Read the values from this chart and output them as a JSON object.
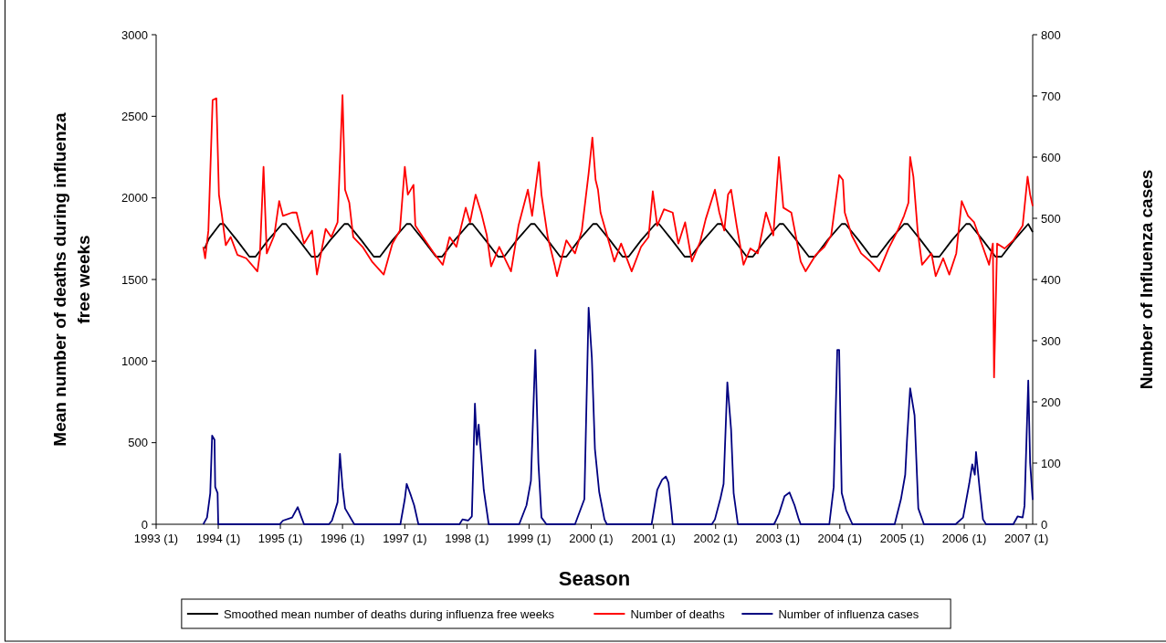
{
  "chart_data": {
    "type": "line",
    "xlabel": "Season",
    "ylabel": "Mean number of deaths during influenza free weeks",
    "y2label": "Number of Influenza cases",
    "xlim": [
      "1993-01-01",
      "2007-02-07"
    ],
    "xticks": [
      {
        "value": "1993-01-01",
        "label": "1993 (1)"
      },
      {
        "value": "1994-01-01",
        "label": "1994 (1)"
      },
      {
        "value": "1995-01-01",
        "label": "1995 (1)"
      },
      {
        "value": "1996-01-01",
        "label": "1996 (1)"
      },
      {
        "value": "1997-01-01",
        "label": "1997 (1)"
      },
      {
        "value": "1998-01-01",
        "label": "1998 (1)"
      },
      {
        "value": "1999-01-01",
        "label": "1999 (1)"
      },
      {
        "value": "2000-01-01",
        "label": "2000 (1)"
      },
      {
        "value": "2001-01-01",
        "label": "2001 (1)"
      },
      {
        "value": "2002-01-01",
        "label": "2002 (1)"
      },
      {
        "value": "2003-01-01",
        "label": "2003 (1)"
      },
      {
        "value": "2004-01-01",
        "label": "2004 (1)"
      },
      {
        "value": "2005-01-01",
        "label": "2005 (1)"
      },
      {
        "value": "2006-01-01",
        "label": "2006 (1)"
      },
      {
        "value": "2007-01-01",
        "label": "2007 (1)"
      }
    ],
    "ylim": [
      0,
      3000
    ],
    "yticks": [
      0,
      500,
      1000,
      1500,
      2000,
      2500,
      3000
    ],
    "y2lim": [
      0,
      800
    ],
    "y2ticks": [
      0,
      100,
      200,
      300,
      400,
      500,
      600,
      700,
      800
    ],
    "grid": false,
    "legend": "bottom",
    "line_style": "solid",
    "marker": "none",
    "series": [
      {
        "name": "Smoothed mean number of deaths during influenza free weeks",
        "color": "#000000",
        "x": [
          "1993-10-13",
          "1993-11-07",
          "1994-01-12",
          "1994-02-03",
          "1994-04-21",
          "1994-07-03",
          "1994-08-08",
          "1994-10-20",
          "1995-01-12",
          "1995-02-03",
          "1995-04-21",
          "1995-07-03",
          "1995-08-08",
          "1995-10-20",
          "1996-01-12",
          "1996-02-03",
          "1996-04-21",
          "1996-07-03",
          "1996-08-08",
          "1996-10-20",
          "1997-01-12",
          "1997-02-03",
          "1997-04-21",
          "1997-07-03",
          "1997-08-08",
          "1997-10-20",
          "1998-01-12",
          "1998-02-03",
          "1998-04-21",
          "1998-07-03",
          "1998-08-08",
          "1998-10-20",
          "1999-01-12",
          "1999-02-03",
          "1999-04-21",
          "1999-07-03",
          "1999-08-08",
          "1999-10-20",
          "2000-01-12",
          "2000-02-03",
          "2000-04-21",
          "2000-07-03",
          "2000-08-08",
          "2000-10-20",
          "2001-01-12",
          "2001-02-03",
          "2001-04-21",
          "2001-07-03",
          "2001-08-08",
          "2001-10-20",
          "2002-01-12",
          "2002-02-03",
          "2002-04-21",
          "2002-07-03",
          "2002-08-08",
          "2002-10-20",
          "2003-01-12",
          "2003-02-03",
          "2003-04-21",
          "2003-07-03",
          "2003-08-08",
          "2003-10-20",
          "2004-01-12",
          "2004-02-03",
          "2004-04-21",
          "2004-07-03",
          "2004-08-08",
          "2004-10-20",
          "2005-01-12",
          "2005-02-03",
          "2005-04-21",
          "2005-07-03",
          "2005-08-08",
          "2005-10-20",
          "2006-01-12",
          "2006-02-03",
          "2006-04-21",
          "2006-07-03",
          "2006-08-08",
          "2006-10-20",
          "2007-01-12",
          "2007-02-07"
        ],
        "values": [
          1690,
          1750,
          1840,
          1840,
          1740,
          1640,
          1640,
          1740,
          1840,
          1840,
          1740,
          1640,
          1640,
          1740,
          1840,
          1840,
          1740,
          1640,
          1640,
          1740,
          1840,
          1840,
          1740,
          1640,
          1640,
          1740,
          1840,
          1840,
          1740,
          1640,
          1640,
          1740,
          1840,
          1840,
          1740,
          1640,
          1640,
          1740,
          1840,
          1840,
          1740,
          1640,
          1640,
          1740,
          1840,
          1840,
          1740,
          1640,
          1640,
          1740,
          1840,
          1840,
          1740,
          1640,
          1640,
          1740,
          1840,
          1840,
          1740,
          1640,
          1640,
          1740,
          1840,
          1840,
          1740,
          1640,
          1640,
          1740,
          1840,
          1840,
          1740,
          1640,
          1640,
          1740,
          1840,
          1840,
          1740,
          1640,
          1640,
          1740,
          1840,
          1790
        ]
      },
      {
        "name": "Number of deaths",
        "color": "#ff0000",
        "x": [
          "1993-10-05",
          "1993-10-16",
          "1993-11-04",
          "1993-11-29",
          "1993-12-21",
          "1994-01-05",
          "1994-01-23",
          "1994-02-14",
          "1994-03-15",
          "1994-04-24",
          "1994-06-14",
          "1994-08-19",
          "1994-09-03",
          "1994-09-24",
          "1994-10-13",
          "1994-11-26",
          "1994-12-25",
          "1995-01-16",
          "1995-03-11",
          "1995-04-06",
          "1995-05-20",
          "1995-07-06",
          "1995-08-04",
          "1995-09-24",
          "1995-10-27",
          "1995-12-03",
          "1996-01-01",
          "1996-01-16",
          "1996-02-10",
          "1996-03-04",
          "1996-04-28",
          "1996-06-22",
          "1996-08-30",
          "1996-10-20",
          "1996-12-03",
          "1997-01-01",
          "1997-01-19",
          "1997-02-21",
          "1997-03-04",
          "1997-04-17",
          "1997-06-22",
          "1997-08-12",
          "1997-09-21",
          "1997-10-31",
          "1997-12-25",
          "1998-01-19",
          "1998-02-21",
          "1998-03-26",
          "1998-04-28",
          "1998-05-23",
          "1998-07-10",
          "1998-09-17",
          "1998-10-31",
          "1998-12-25",
          "1999-01-19",
          "1999-02-28",
          "1999-03-15",
          "1999-04-21",
          "1999-05-31",
          "1999-06-14",
          "1999-08-08",
          "1999-09-28",
          "1999-11-07",
          "1999-12-17",
          "2000-01-08",
          "2000-01-27",
          "2000-02-10",
          "2000-02-25",
          "2000-04-17",
          "2000-05-16",
          "2000-06-25",
          "2000-08-26",
          "2000-10-20",
          "2000-12-03",
          "2000-12-28",
          "2001-01-23",
          "2001-03-04",
          "2001-04-24",
          "2001-05-27",
          "2001-07-06",
          "2001-08-15",
          "2001-10-02",
          "2001-11-04",
          "2001-12-28",
          "2002-01-23",
          "2002-02-21",
          "2002-03-15",
          "2002-04-02",
          "2002-05-05",
          "2002-06-14",
          "2002-07-24",
          "2002-09-06",
          "2002-10-24",
          "2002-12-06",
          "2003-01-08",
          "2003-02-03",
          "2003-03-22",
          "2003-05-16",
          "2003-06-14",
          "2003-08-12",
          "2003-10-02",
          "2003-11-11",
          "2003-12-28",
          "2004-01-19",
          "2004-01-30",
          "2004-03-11",
          "2004-05-05",
          "2004-06-29",
          "2004-08-19",
          "2004-10-13",
          "2004-12-06",
          "2005-01-12",
          "2005-02-07",
          "2005-02-17",
          "2005-03-08",
          "2005-04-02",
          "2005-04-28",
          "2005-06-22",
          "2005-07-17",
          "2005-08-30",
          "2005-10-05",
          "2005-11-15",
          "2005-12-17",
          "2006-01-23",
          "2006-02-28",
          "2006-04-13",
          "2006-05-27",
          "2006-06-18",
          "2006-06-25",
          "2006-07-13",
          "2006-08-26",
          "2006-10-16",
          "2006-12-10",
          "2007-01-08",
          "2007-01-23",
          "2007-02-07"
        ],
        "values": [
          1700,
          1630,
          1800,
          2600,
          2610,
          2020,
          1890,
          1710,
          1760,
          1650,
          1630,
          1550,
          1660,
          2190,
          1660,
          1770,
          1980,
          1890,
          1910,
          1910,
          1720,
          1800,
          1530,
          1810,
          1760,
          1850,
          2630,
          2050,
          1970,
          1760,
          1700,
          1610,
          1530,
          1720,
          1800,
          2190,
          2020,
          2080,
          1830,
          1760,
          1660,
          1590,
          1760,
          1700,
          1940,
          1850,
          2020,
          1910,
          1770,
          1580,
          1700,
          1550,
          1830,
          2050,
          1890,
          2220,
          2020,
          1760,
          1590,
          1520,
          1740,
          1660,
          1800,
          2150,
          2370,
          2110,
          2050,
          1910,
          1720,
          1610,
          1720,
          1550,
          1700,
          1760,
          2040,
          1830,
          1930,
          1910,
          1720,
          1850,
          1610,
          1730,
          1870,
          2050,
          1910,
          1800,
          2020,
          2050,
          1830,
          1590,
          1690,
          1660,
          1910,
          1770,
          2250,
          1940,
          1910,
          1610,
          1550,
          1650,
          1700,
          1770,
          2140,
          2110,
          1910,
          1770,
          1660,
          1610,
          1550,
          1690,
          1800,
          1890,
          1970,
          2250,
          2130,
          1800,
          1590,
          1660,
          1520,
          1630,
          1530,
          1660,
          1980,
          1890,
          1850,
          1720,
          1590,
          1720,
          900,
          1720,
          1690,
          1740,
          1830,
          2130,
          2020,
          1950
        ]
      },
      {
        "name": "Number of influenza cases",
        "color": "#000080",
        "axis": "y2",
        "x": [
          "1993-10-05",
          "1993-10-27",
          "1993-11-15",
          "1993-11-26",
          "1993-12-10",
          "1993-12-14",
          "1993-12-28",
          "1994-01-01",
          "1994-12-28",
          "1995-01-16",
          "1995-03-11",
          "1995-04-13",
          "1995-05-05",
          "1995-05-20",
          "1995-10-13",
          "1995-10-31",
          "1995-12-03",
          "1995-12-17",
          "1996-01-01",
          "1996-01-16",
          "1996-03-04",
          "1996-03-11",
          "1996-12-06",
          "1997-01-01",
          "1997-01-12",
          "1997-02-07",
          "1997-02-25",
          "1997-03-22",
          "1997-11-18",
          "1997-12-06",
          "1998-01-08",
          "1998-01-30",
          "1998-02-17",
          "1998-02-28",
          "1998-03-11",
          "1998-03-22",
          "1998-04-10",
          "1998-05-09",
          "1998-11-04",
          "1998-12-17",
          "1999-01-12",
          "1999-02-07",
          "1999-02-25",
          "1999-03-15",
          "1999-04-13",
          "1999-09-28",
          "1999-11-22",
          "1999-12-17",
          "2000-01-05",
          "2000-01-23",
          "2000-02-17",
          "2000-03-19",
          "2000-04-02",
          "2000-12-21",
          "2001-01-23",
          "2001-02-21",
          "2001-03-15",
          "2001-03-30",
          "2001-04-17",
          "2001-04-24",
          "2001-12-10",
          "2001-12-28",
          "2002-01-30",
          "2002-02-17",
          "2002-03-11",
          "2002-04-02",
          "2002-04-17",
          "2002-05-12",
          "2002-12-10",
          "2002-12-21",
          "2003-01-08",
          "2003-02-10",
          "2003-03-11",
          "2003-04-10",
          "2003-05-05",
          "2003-05-16",
          "2003-10-31",
          "2003-11-26",
          "2003-12-17",
          "2003-12-28",
          "2004-01-12",
          "2004-02-07",
          "2004-03-15",
          "2004-11-18",
          "2004-12-25",
          "2005-01-19",
          "2005-01-30",
          "2005-02-17",
          "2005-03-15",
          "2005-04-06",
          "2005-05-09",
          "2005-11-11",
          "2005-12-25",
          "2006-01-30",
          "2006-02-17",
          "2006-03-04",
          "2006-03-11",
          "2006-04-02",
          "2006-04-21",
          "2006-05-09",
          "2006-10-16",
          "2006-11-11",
          "2006-12-10",
          "2006-12-21",
          "2007-01-12",
          "2007-01-23",
          "2007-02-07"
        ],
        "values": [
          0,
          11,
          51,
          145,
          138,
          61,
          51,
          0,
          0,
          6,
          11,
          28,
          11,
          0,
          0,
          6,
          36,
          115,
          61,
          26,
          3,
          0,
          0,
          41,
          66,
          46,
          31,
          0,
          0,
          8,
          6,
          13,
          197,
          130,
          163,
          123,
          56,
          0,
          0,
          31,
          71,
          285,
          100,
          11,
          0,
          0,
          41,
          354,
          272,
          123,
          53,
          8,
          0,
          0,
          56,
          73,
          78,
          68,
          21,
          0,
          0,
          8,
          43,
          66,
          232,
          155,
          51,
          0,
          0,
          6,
          17,
          46,
          52,
          31,
          8,
          0,
          0,
          61,
          285,
          285,
          51,
          23,
          0,
          0,
          41,
          81,
          140,
          222,
          178,
          26,
          0,
          0,
          11,
          66,
          98,
          81,
          118,
          56,
          8,
          0,
          0,
          13,
          11,
          30,
          235,
          100,
          40
        ]
      }
    ]
  }
}
